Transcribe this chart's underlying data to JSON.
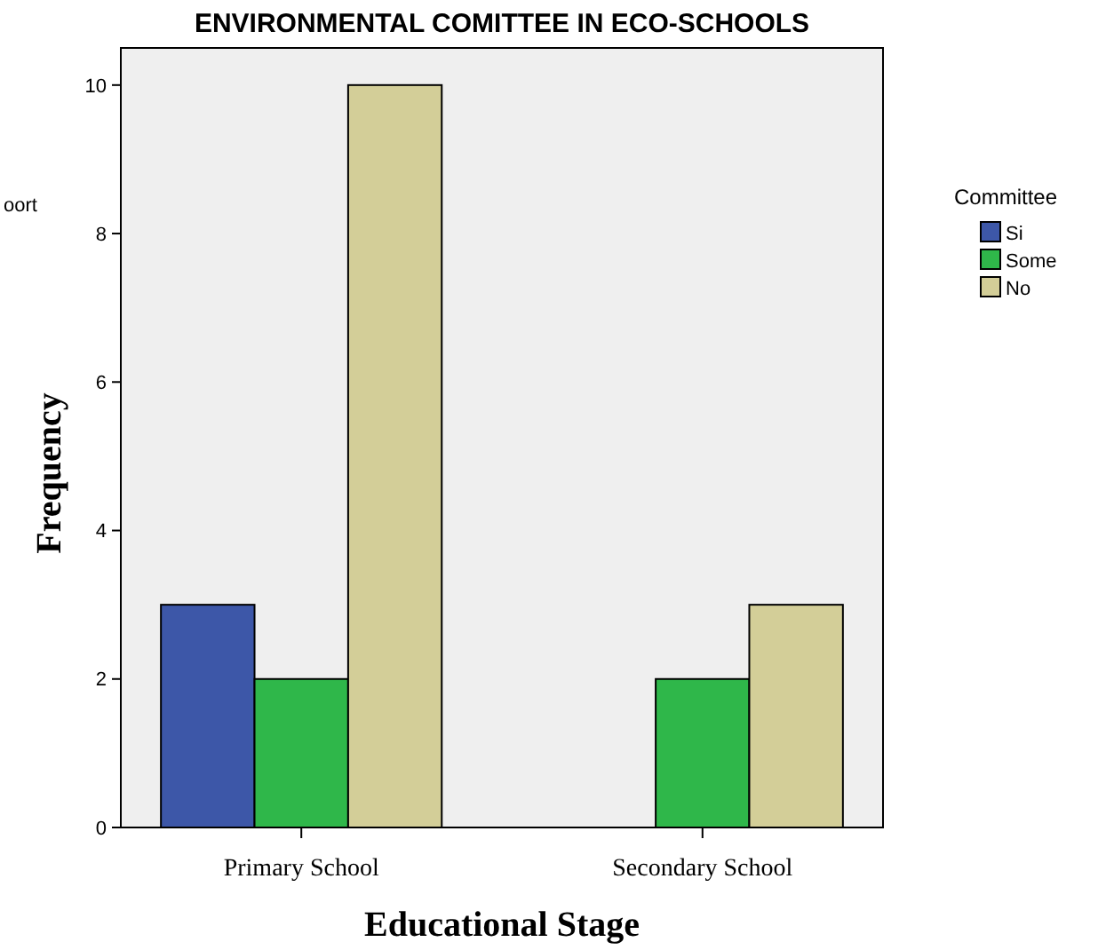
{
  "chart_data": {
    "type": "bar",
    "title": "ENVIRONMENTAL COMITTEE IN ECO-SCHOOLS",
    "xlabel": "Educational Stage",
    "ylabel": "Frequency",
    "legend_title": "Committee",
    "categories": [
      "Primary School",
      "Secondary School"
    ],
    "series": [
      {
        "name": "Si",
        "color": "#3d57a8",
        "values": [
          3,
          0
        ]
      },
      {
        "name": "Some",
        "color": "#2fb74a",
        "values": [
          2,
          2
        ]
      },
      {
        "name": "No",
        "color": "#d3ce98",
        "values": [
          10,
          3
        ]
      }
    ],
    "ylim": [
      0,
      10.5
    ],
    "yticks": [
      0,
      2,
      4,
      6,
      8,
      10
    ],
    "grid": false,
    "legend": "right",
    "annotations": [
      "oort"
    ]
  }
}
